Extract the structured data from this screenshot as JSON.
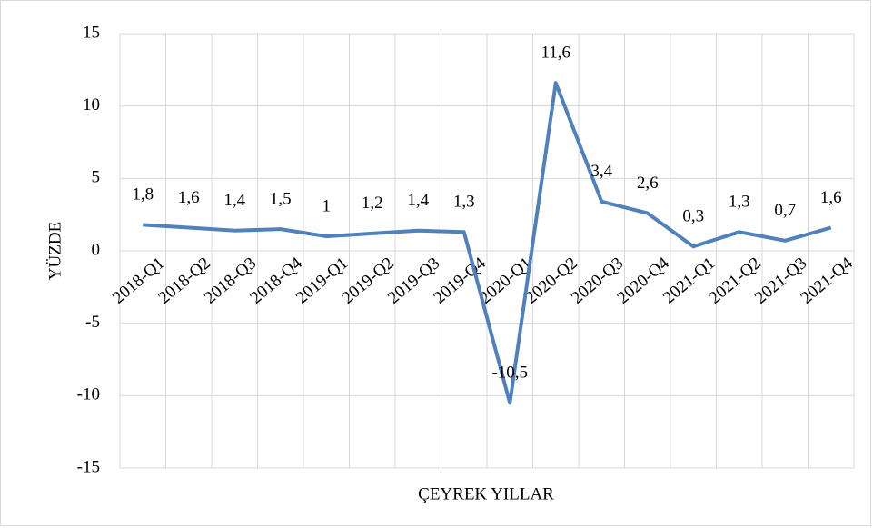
{
  "chart_data": {
    "type": "line",
    "x_label": "ÇEYREK YILLAR",
    "y_label": "YÜZDE",
    "categories": [
      "2018-Q1",
      "2018-Q2",
      "2018-Q3",
      "2018-Q4",
      "2019-Q1",
      "2019-Q2",
      "2019-Q3",
      "2019-Q4",
      "2020-Q1",
      "2020-Q2",
      "2020-Q3",
      "2020-Q4",
      "2021-Q1",
      "2021-Q2",
      "2021-Q3",
      "2021-Q4"
    ],
    "series": [
      {
        "color": "#4f81bd",
        "values": [
          1.8,
          1.6,
          1.4,
          1.5,
          1,
          1.2,
          1.4,
          1.3,
          -10.5,
          11.6,
          3.4,
          2.6,
          0.3,
          1.3,
          0.7,
          1.6
        ],
        "value_labels": [
          "1,8",
          "1,6",
          "1,4",
          "1,5",
          "1",
          "1,2",
          "1,4",
          "1,3",
          "-10,5",
          "11,6",
          "3,4",
          "2,6",
          "0,3",
          "1,3",
          "0,7",
          "1,6"
        ]
      }
    ],
    "ylim": [
      -15,
      15
    ],
    "yticks": [
      -15,
      -10,
      -5,
      0,
      5,
      10,
      15
    ],
    "grid": true
  }
}
